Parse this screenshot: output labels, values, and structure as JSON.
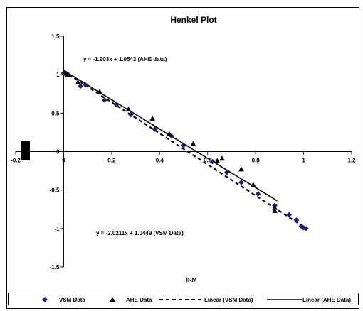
{
  "chart_data": {
    "type": "scatter",
    "title": "Henkel Plot",
    "xlabel": "IRM",
    "ylabel": "",
    "xlim": [
      -0.2,
      1.2
    ],
    "ylim": [
      -1.5,
      1.5
    ],
    "x_ticks": [
      "-0.2",
      "0",
      "0.2",
      "0.4",
      "0.6",
      "0.8",
      "1",
      "1.2"
    ],
    "y_ticks": [
      "-1.5",
      "-1",
      "-0.5",
      "0",
      "0.5",
      "1",
      "1.5"
    ],
    "x_tick_values": [
      -0.2,
      0,
      0.2,
      0.4,
      0.6,
      0.8,
      1,
      1.2
    ],
    "y_tick_values": [
      -1.5,
      -1,
      -0.5,
      0,
      0.5,
      1,
      1.5
    ],
    "grid": false,
    "legend_position": "bottom",
    "series": [
      {
        "name": "VSM Data",
        "marker": "diamond",
        "color": "#1f1f6e",
        "x": [
          0.0,
          0.01,
          0.07,
          0.09,
          0.17,
          0.22,
          0.28,
          0.38,
          0.45,
          0.5,
          0.62,
          0.68,
          0.74,
          0.81,
          0.88,
          0.94,
          0.97,
          0.99,
          1.0,
          1.01
        ],
        "y": [
          1.02,
          1.0,
          0.85,
          0.87,
          0.67,
          0.61,
          0.48,
          0.29,
          0.2,
          0.08,
          -0.13,
          -0.27,
          -0.4,
          -0.55,
          -0.7,
          -0.82,
          -0.89,
          -0.97,
          -0.99,
          -1.0
        ]
      },
      {
        "name": "AHE Data",
        "marker": "triangle",
        "color": "#000000",
        "x": [
          0.01,
          0.02,
          0.06,
          0.15,
          0.27,
          0.37,
          0.44,
          0.54,
          0.64,
          0.66,
          0.74,
          0.79,
          0.88,
          0.88
        ],
        "y": [
          1.02,
          1.0,
          0.9,
          0.78,
          0.55,
          0.43,
          0.23,
          0.1,
          -0.12,
          -0.09,
          -0.23,
          -0.43,
          -0.73,
          -0.77
        ]
      }
    ],
    "trendlines": [
      {
        "name": "Linear (VSM Data)",
        "style": "dashed",
        "slope": -2.0211,
        "intercept": 1.0449,
        "x_range": [
          0.0,
          1.01
        ],
        "equation": "y = -2.0211x + 1.0449 (VSM Data)"
      },
      {
        "name": "Linear (AHE Data)",
        "style": "solid",
        "slope": -1.903,
        "intercept": 1.0543,
        "x_range": [
          0.0,
          0.89
        ],
        "equation": "y = -1.903x + 1.0543 (AHE data)"
      }
    ],
    "annotations": {
      "ahe_equation": "y = -1.903x + 1.0543 (AHE data)",
      "vsm_equation": "y = -2.0211x + 1.0449 (VSM Data)"
    },
    "legend": {
      "vsm": "VSM Data",
      "ahe": "AHE Data",
      "lin_vsm": "Linear (VSM Data)",
      "lin_ahe": "Linear (AHE Data)"
    }
  }
}
